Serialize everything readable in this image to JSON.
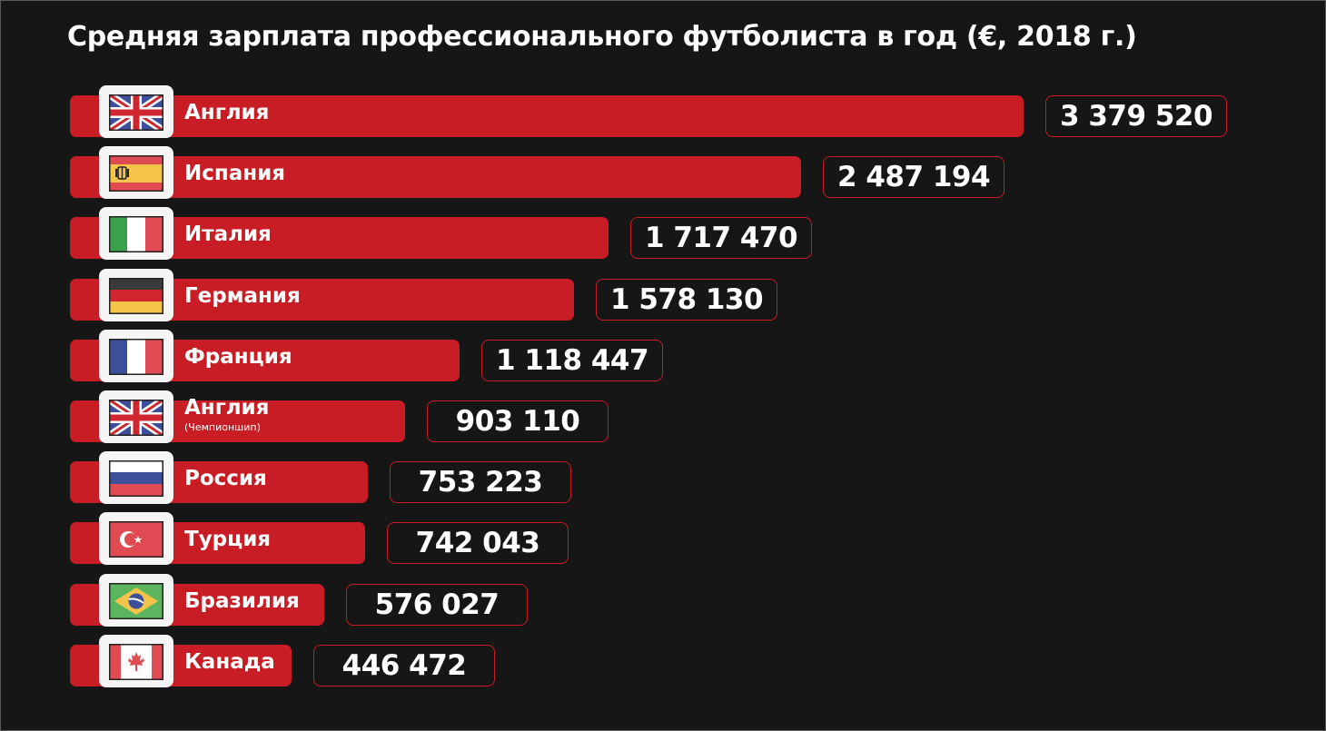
{
  "chart_data": {
    "type": "bar",
    "orientation": "horizontal",
    "title": "Средняя зарплата профессионального футболиста в год (€, 2018 г.)",
    "xlabel": "",
    "ylabel": "",
    "grid": false,
    "legend": "none",
    "bar_color": "#c81d25",
    "categories": [
      {
        "name": "Англия",
        "sub": "",
        "flag": "uk-flag-icon"
      },
      {
        "name": "Испания",
        "sub": "",
        "flag": "spain-flag-icon"
      },
      {
        "name": "Италия",
        "sub": "",
        "flag": "italy-flag-icon"
      },
      {
        "name": "Германия",
        "sub": "",
        "flag": "germany-flag-icon"
      },
      {
        "name": "Франция",
        "sub": "",
        "flag": "france-flag-icon"
      },
      {
        "name": "Англия",
        "sub": "(Чемпионшип)",
        "flag": "uk-flag-icon"
      },
      {
        "name": "Россия",
        "sub": "",
        "flag": "russia-flag-icon"
      },
      {
        "name": "Турция",
        "sub": "",
        "flag": "turkey-flag-icon"
      },
      {
        "name": "Бразилия",
        "sub": "",
        "flag": "brazil-flag-icon"
      },
      {
        "name": "Канада",
        "sub": "",
        "flag": "canada-flag-icon"
      }
    ],
    "values": [
      3379520,
      2487194,
      1717470,
      1578130,
      1118447,
      903110,
      753223,
      742043,
      576027,
      446472
    ],
    "value_labels": [
      "3 379 520",
      "2 487 194",
      "1 717 470",
      "1 578 130",
      "1 118 447",
      "903 110",
      "753 223",
      "742 043",
      "576 027",
      "446 472"
    ],
    "xlim": [
      0,
      3379520
    ]
  }
}
